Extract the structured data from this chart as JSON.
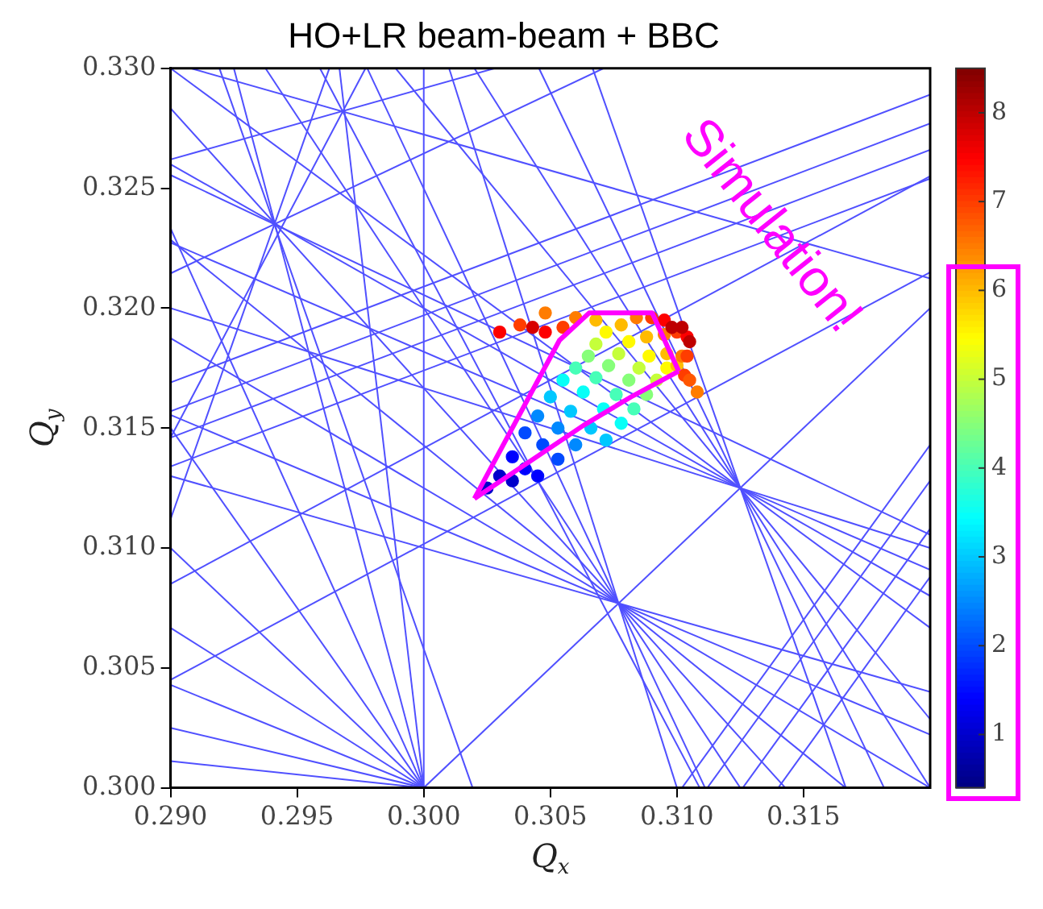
{
  "chart_data": {
    "type": "line",
    "title": "HO+LR beam-beam + BBC",
    "xlabel": "Q$_{x}$",
    "ylabel": "Q$_{y}$",
    "annotations": [
      "Simulation!"
    ],
    "xlim": [
      0.29,
      0.32
    ],
    "ylim": [
      0.3,
      0.33
    ],
    "xticks": [
      {
        "value": 0.29,
        "label": "0.290"
      },
      {
        "value": 0.295,
        "label": "0.295"
      },
      {
        "value": 0.3,
        "label": "0.300"
      },
      {
        "value": 0.305,
        "label": "0.305"
      },
      {
        "value": 0.31,
        "label": "0.310"
      },
      {
        "value": 0.315,
        "label": "0.315"
      }
    ],
    "yticks": [
      {
        "value": 0.3,
        "label": "0.300"
      },
      {
        "value": 0.305,
        "label": "0.305"
      },
      {
        "value": 0.31,
        "label": "0.310"
      },
      {
        "value": 0.315,
        "label": "0.315"
      },
      {
        "value": 0.32,
        "label": "0.320"
      },
      {
        "value": 0.325,
        "label": "0.325"
      },
      {
        "value": 0.33,
        "label": "0.330"
      }
    ],
    "clim": [
      0.4,
      8.5
    ],
    "cticks": [
      1,
      2,
      3,
      4,
      5,
      6,
      7,
      8
    ],
    "grid": false,
    "series": [
      {
        "color": "#5050ff",
        "x": [
          0.3,
          0.29
        ],
        "values": [
          0.3,
          0.30111
        ]
      },
      {
        "color": "#5050ff",
        "x": [
          0.3,
          0.29
        ],
        "values": [
          0.3,
          0.3025
        ]
      },
      {
        "color": "#5050ff",
        "x": [
          0.3,
          0.29
        ],
        "values": [
          0.3,
          0.30429
        ]
      },
      {
        "color": "#5050ff",
        "x": [
          0.3,
          0.29
        ],
        "values": [
          0.3,
          0.30667
        ]
      },
      {
        "color": "#5050ff",
        "x": [
          0.3,
          0.29
        ],
        "values": [
          0.3,
          0.31
        ]
      },
      {
        "color": "#5050ff",
        "x": [
          0.3,
          0.29
        ],
        "values": [
          0.3,
          0.315
        ]
      },
      {
        "color": "#5050ff",
        "x": [
          0.3,
          0.29
        ],
        "values": [
          0.3,
          0.32333
        ]
      },
      {
        "color": "#5050ff",
        "x": [
          0.3,
          0.2925
        ],
        "values": [
          0.3,
          0.33
        ]
      },
      {
        "color": "#5050ff",
        "x": [
          0.3,
          0.29667
        ],
        "values": [
          0.3,
          0.33
        ]
      },
      {
        "color": "#5050ff",
        "x": [
          0.3,
          0.3
        ],
        "values": [
          0.3,
          0.33
        ]
      },
      {
        "color": "#5050ff",
        "x": [
          0.3,
          0.32
        ],
        "values": [
          0.3,
          0.32
        ]
      },
      {
        "color": "#5050ff",
        "x": [
          0.29,
          0.32
        ],
        "values": [
          0.313,
          0.304
        ]
      },
      {
        "color": "#5050ff",
        "x": [
          0.29,
          0.32
        ],
        "values": [
          0.31555,
          0.30222
        ]
      },
      {
        "color": "#5050ff",
        "x": [
          0.29,
          0.32
        ],
        "values": [
          0.31875,
          0.3
        ]
      },
      {
        "color": "#5050ff",
        "x": [
          0.29,
          0.31666
        ],
        "values": [
          0.32285,
          0.3
        ]
      },
      {
        "color": "#5050ff",
        "x": [
          0.29,
          0.31428
        ],
        "values": [
          0.32833,
          0.3
        ]
      },
      {
        "color": "#5050ff",
        "x": [
          0.29375,
          0.3125
        ],
        "values": [
          0.33,
          0.3
        ]
      },
      {
        "color": "#5050ff",
        "x": [
          0.29777,
          0.31111
        ],
        "values": [
          0.33,
          0.3
        ]
      },
      {
        "color": "#5050ff",
        "x": [
          0.301,
          0.31
        ],
        "values": [
          0.33,
          0.3
        ]
      },
      {
        "color": "#5050ff",
        "x": [
          0.29,
          0.32
        ],
        "values": [
          0.32,
          0.31
        ]
      },
      {
        "color": "#5050ff",
        "x": [
          0.29,
          0.32
        ],
        "values": [
          0.32273,
          0.30909
        ]
      },
      {
        "color": "#5050ff",
        "x": [
          0.29,
          0.32
        ],
        "values": [
          0.326,
          0.308
        ]
      },
      {
        "color": "#5050ff",
        "x": [
          0.29,
          0.32
        ],
        "values": [
          0.33,
          0.30667
        ]
      },
      {
        "color": "#5050ff",
        "x": [
          0.29889,
          0.32
        ],
        "values": [
          0.33,
          0.30286
        ]
      },
      {
        "color": "#5050ff",
        "x": [
          0.302,
          0.32
        ],
        "values": [
          0.33,
          0.3
        ]
      },
      {
        "color": "#5050ff",
        "x": [
          0.30455,
          0.31818
        ],
        "values": [
          0.33,
          0.3
        ]
      },
      {
        "color": "#5050ff",
        "x": [
          0.30667,
          0.31667
        ],
        "values": [
          0.33,
          0.3
        ]
      },
      {
        "color": "#5050ff",
        "x": [
          0.3102,
          0.32
        ],
        "values": [
          0.3,
          0.3143
        ]
      },
      {
        "color": "#5050ff",
        "x": [
          0.3112,
          0.32
        ],
        "values": [
          0.3,
          0.3128
        ]
      },
      {
        "color": "#5050ff",
        "x": [
          0.3126,
          0.32
        ],
        "values": [
          0.3,
          0.3108
        ]
      },
      {
        "color": "#5050ff",
        "x": [
          0.314,
          0.32
        ],
        "values": [
          0.3,
          0.3088
        ]
      },
      {
        "color": "#5050ff",
        "x": [
          0.29,
          0.29627
        ],
        "values": [
          0.3112,
          0.33
        ]
      },
      {
        "color": "#5050ff",
        "x": [
          0.29193,
          0.30193
        ],
        "values": [
          0.33,
          0.3
        ]
      },
      {
        "color": "#5050ff",
        "x": [
          0.29,
          0.3071
        ],
        "values": [
          0.32145,
          0.33
        ]
      },
      {
        "color": "#5050ff",
        "x": [
          0.29,
          0.32
        ],
        "values": [
          0.32555,
          0.31055
        ]
      },
      {
        "color": "#5050ff",
        "x": [
          0.29,
          0.2977
        ],
        "values": [
          0.3146,
          0.33
        ]
      },
      {
        "color": "#5050ff",
        "x": [
          0.2959,
          0.3109
        ],
        "values": [
          0.33,
          0.3
        ]
      },
      {
        "color": "#5050ff",
        "x": [
          0.29,
          0.3028
        ],
        "values": [
          0.3262,
          0.33
        ]
      },
      {
        "color": "#5050ff",
        "x": [
          0.2908,
          0.32
        ],
        "values": [
          0.33,
          0.32124
        ]
      },
      {
        "color": "#5050ff",
        "x": [
          0.29,
          0.32
        ],
        "values": [
          0.3169,
          0.3289
        ]
      },
      {
        "color": "#5050ff",
        "x": [
          0.29,
          0.32
        ],
        "values": [
          0.3157,
          0.3277
        ]
      },
      {
        "color": "#5050ff",
        "x": [
          0.29,
          0.32
        ],
        "values": [
          0.3146,
          0.3266
        ]
      },
      {
        "color": "#5050ff",
        "x": [
          0.29,
          0.32
        ],
        "values": [
          0.3134,
          0.3254
        ]
      },
      {
        "color": "#5050ff",
        "x": [
          0.29,
          0.32
        ],
        "values": [
          0.3045,
          0.3215
        ]
      },
      {
        "color": "#5050ff",
        "x": [
          0.29,
          0.32
        ],
        "values": [
          0.3085,
          0.3255
        ]
      },
      {
        "color": "#ff00ff",
        "x": [
          0.302,
          0.30536,
          0.30653,
          0.30902,
          0.31007
        ],
        "values": [
          0.31206,
          0.31866,
          0.3198,
          0.3198,
          0.31737
        ]
      },
      {
        "color": "#ff00ff",
        "x": [
          0.302,
          0.30632,
          0.30827,
          0.31007
        ],
        "values": [
          0.31206,
          0.31512,
          0.31635,
          0.31737
        ]
      },
      {
        "type": "scatter",
        "x": [
          0.3025,
          0.303,
          0.3035,
          0.3035,
          0.304,
          0.3045,
          0.304,
          0.3047,
          0.3053,
          0.3045,
          0.3053,
          0.306,
          0.305,
          0.3058,
          0.3066,
          0.3072,
          0.3055,
          0.3063,
          0.3071,
          0.3078,
          0.306,
          0.3068,
          0.3076,
          0.3083,
          0.3065,
          0.3073,
          0.3081,
          0.3088,
          0.3068,
          0.3077,
          0.3085,
          0.3092,
          0.3072,
          0.3081,
          0.3089,
          0.3096,
          0.3068,
          0.3078,
          0.3088,
          0.3096,
          0.31,
          0.306,
          0.3084,
          0.3095,
          0.3102,
          0.3055,
          0.309,
          0.31,
          0.3104,
          0.3103,
          0.3048,
          0.3095,
          0.3104,
          0.3098,
          0.3102,
          0.3105,
          0.303,
          0.3038,
          0.3048,
          0.3043,
          0.3105,
          0.3108
        ],
        "values": [
          0.3125,
          0.313,
          0.3128,
          0.3138,
          0.3133,
          0.313,
          0.3148,
          0.3143,
          0.3137,
          0.3155,
          0.315,
          0.3143,
          0.3163,
          0.3157,
          0.315,
          0.3145,
          0.317,
          0.3165,
          0.3158,
          0.3152,
          0.3175,
          0.3171,
          0.3164,
          0.3158,
          0.318,
          0.3176,
          0.317,
          0.3164,
          0.3185,
          0.3181,
          0.3175,
          0.317,
          0.319,
          0.3186,
          0.318,
          0.3175,
          0.3195,
          0.3193,
          0.3188,
          0.3181,
          0.3176,
          0.3196,
          0.3196,
          0.3189,
          0.318,
          0.3192,
          0.3196,
          0.319,
          0.318,
          0.3172,
          0.319,
          0.3195,
          0.3188,
          0.3192,
          0.3192,
          0.3186,
          0.319,
          0.3193,
          0.3198,
          0.3192,
          0.317,
          0.3165
        ],
        "colors": [
          "#0000cb",
          "#0000cb",
          "#0000cb",
          "#0000ff",
          "#0000ff",
          "#0000ff",
          "#004aff",
          "#004aff",
          "#004aff",
          "#0089ff",
          "#0089ff",
          "#0089ff",
          "#00c8ff",
          "#00c8ff",
          "#00c8ff",
          "#00c8ff",
          "#08fff7",
          "#08fff7",
          "#08fff7",
          "#08fff7",
          "#47ffb8",
          "#47ffb8",
          "#47ffb8",
          "#47ffb8",
          "#86ff79",
          "#86ff79",
          "#86ff79",
          "#86ff79",
          "#c5ff3a",
          "#c5ff3a",
          "#c5ff3a",
          "#c5ff3a",
          "#fffa00",
          "#fffa00",
          "#fffa00",
          "#fffa00",
          "#ffbb00",
          "#ffbb00",
          "#ffbb00",
          "#ffbb00",
          "#ffbb00",
          "#ff7c00",
          "#ff7c00",
          "#ff7c00",
          "#ff7c00",
          "#ff3d00",
          "#ff3d00",
          "#ff3d00",
          "#ff3d00",
          "#ff3d00",
          "#fd0000",
          "#fd0000",
          "#fd0000",
          "#be0000",
          "#be0000",
          "#be0000",
          "#fd0000",
          "#ff3d00",
          "#ff7c00",
          "#d80000",
          "#ff5700",
          "#ff7c00"
        ],
        "cvalues": [
          1,
          1,
          1,
          1.5,
          1.5,
          1.5,
          2,
          2,
          2,
          2.5,
          2.5,
          2.5,
          3,
          3,
          3,
          3,
          3.5,
          3.5,
          3.5,
          3.5,
          4,
          4,
          4,
          4,
          4.5,
          4.5,
          4.5,
          4.5,
          5,
          5,
          5,
          5,
          5.5,
          5.5,
          5.5,
          5.5,
          6,
          6,
          6,
          6,
          6,
          6.5,
          6.5,
          6.5,
          6.5,
          7,
          7,
          7,
          7,
          7,
          7.5,
          7.5,
          7.5,
          8,
          8,
          8,
          7.5,
          7,
          6.5,
          7.8,
          6.8,
          6.5
        ]
      }
    ]
  }
}
